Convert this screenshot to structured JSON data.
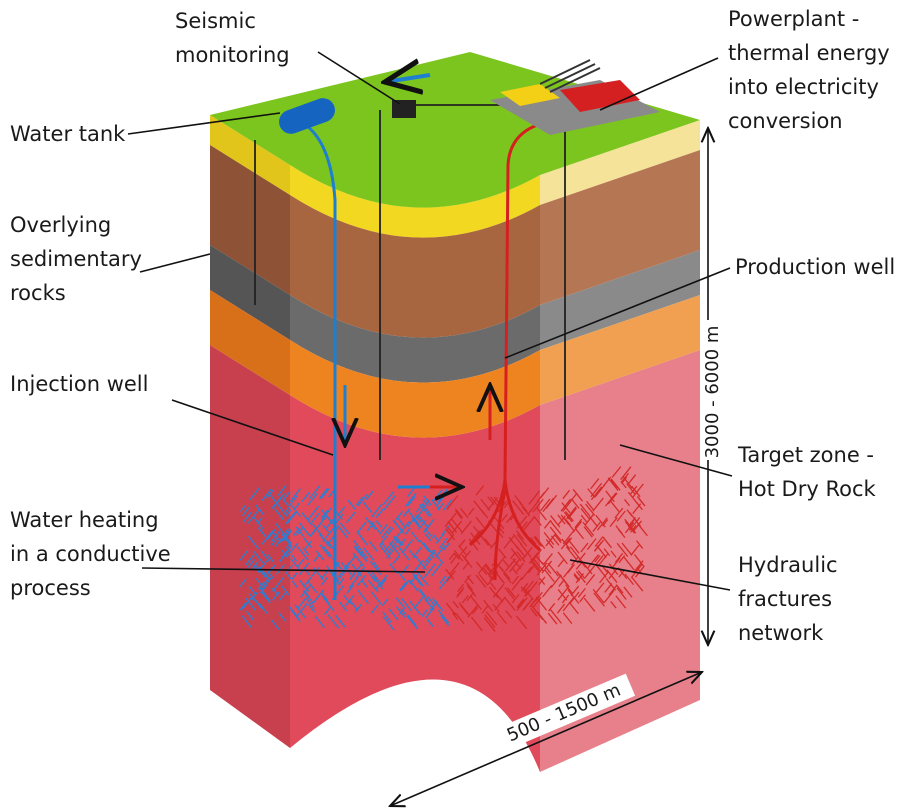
{
  "labels": {
    "seismic": [
      "Seismic",
      "monitoring"
    ],
    "powerplant": [
      "Powerplant -",
      "thermal energy",
      "into electricity",
      "conversion"
    ],
    "water_tank": [
      "Water tank"
    ],
    "sedimentary": [
      "Overlying",
      "sedimentary",
      "rocks"
    ],
    "production": [
      "Production well"
    ],
    "injection": [
      "Injection well"
    ],
    "target": [
      "Target zone -",
      "Hot Dry Rock"
    ],
    "heating": [
      "Water heating",
      "in a conductive",
      "process"
    ],
    "fractures": [
      "Hydraulic",
      "fractures",
      "network"
    ]
  },
  "dimensions": {
    "depth": "3000 - 6000 m",
    "width": "500 - 1500 m"
  }
}
